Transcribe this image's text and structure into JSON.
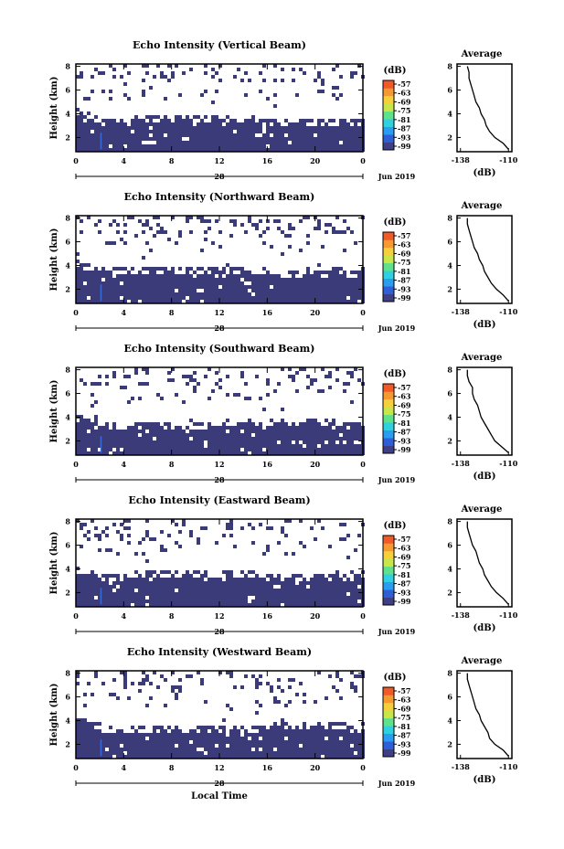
{
  "x_axis_label": "Local Time",
  "chart_data": [
    {
      "type": "heatmap",
      "title": "Echo Intensity (Vertical Beam)",
      "ylabel": "Height (km)",
      "x_ticks": [
        "0",
        "4",
        "8",
        "12",
        "16",
        "20",
        "0"
      ],
      "y_ticks": [
        "2",
        "4",
        "6",
        "8"
      ],
      "day_label": "28",
      "month_label": "Jun 2019",
      "colorbar_unit": "(dB)",
      "colorbar_ticks": [
        "-57",
        "-63",
        "-69",
        "-75",
        "-81",
        "-87",
        "-93",
        "-99"
      ],
      "ylim": [
        0.8,
        8.2
      ],
      "xlim": [
        0,
        24
      ],
      "echo_top_km": [
        4.3,
        3.8,
        3.4,
        3.4,
        3.6,
        3.8,
        3.8,
        3.6,
        3.6,
        3.6,
        3.7,
        3.6,
        3.5,
        3.6,
        3.4,
        3.3,
        3.2,
        3.5,
        3.3,
        3.5,
        3.3,
        3.6
      ],
      "avg_title": "Average",
      "avg_xlabel": "(dB)",
      "avg_x_ticks": [
        "-138",
        "-110"
      ],
      "avg_y_ticks": [
        "2",
        "4",
        "6",
        "8"
      ],
      "avg_xlim": [
        -140,
        -108
      ],
      "avg_height_km": [
        1.0,
        1.5,
        2.0,
        2.5,
        3.0,
        3.5,
        4.0,
        4.5,
        5.0,
        5.5,
        6.0,
        6.5,
        7.0,
        7.5,
        8.0
      ],
      "avg_db": [
        -110,
        -113,
        -118,
        -121,
        -123,
        -124,
        -126,
        -127,
        -129,
        -130,
        -131,
        -132,
        -133,
        -133,
        -134
      ]
    },
    {
      "type": "heatmap",
      "title": "Echo Intensity (Northward Beam)",
      "ylabel": "Height (km)",
      "x_ticks": [
        "0",
        "4",
        "8",
        "12",
        "16",
        "20",
        "0"
      ],
      "y_ticks": [
        "2",
        "4",
        "6",
        "8"
      ],
      "day_label": "28",
      "month_label": "Jun 2019",
      "colorbar_unit": "(dB)",
      "colorbar_ticks": [
        "-57",
        "-63",
        "-69",
        "-75",
        "-81",
        "-87",
        "-93",
        "-99"
      ],
      "ylim": [
        0.8,
        8.2
      ],
      "xlim": [
        0,
        24
      ],
      "echo_top_km": [
        4.3,
        3.9,
        3.6,
        3.6,
        3.8,
        3.8,
        3.8,
        3.7,
        3.7,
        3.7,
        3.7,
        3.6,
        3.7,
        3.8,
        3.6,
        3.5,
        3.4,
        3.6,
        3.4,
        3.7,
        3.4,
        3.7
      ],
      "avg_title": "Average",
      "avg_xlabel": "(dB)",
      "avg_x_ticks": [
        "-138",
        "-110"
      ],
      "avg_y_ticks": [
        "2",
        "4",
        "6",
        "8"
      ],
      "avg_xlim": [
        -140,
        -108
      ],
      "avg_height_km": [
        1.0,
        1.5,
        2.0,
        2.5,
        3.0,
        3.5,
        4.0,
        4.5,
        5.0,
        5.5,
        6.0,
        6.5,
        7.0,
        7.5,
        8.0
      ],
      "avg_db": [
        -110,
        -113,
        -117,
        -120,
        -122,
        -124,
        -125,
        -127,
        -128,
        -130,
        -131,
        -132,
        -133,
        -134,
        -134
      ]
    },
    {
      "type": "heatmap",
      "title": "Echo Intensity (Southward Beam)",
      "ylabel": "Height (km)",
      "x_ticks": [
        "0",
        "4",
        "8",
        "12",
        "16",
        "20",
        "0"
      ],
      "y_ticks": [
        "2",
        "4",
        "6",
        "8"
      ],
      "day_label": "28",
      "month_label": "Jun 2019",
      "colorbar_unit": "(dB)",
      "colorbar_ticks": [
        "-57",
        "-63",
        "-69",
        "-75",
        "-81",
        "-87",
        "-93",
        "-99"
      ],
      "ylim": [
        0.8,
        8.2
      ],
      "xlim": [
        0,
        24
      ],
      "echo_top_km": [
        4.6,
        4.1,
        3.5,
        3.2,
        3.3,
        3.6,
        3.5,
        3.3,
        3.2,
        3.3,
        3.5,
        3.6,
        3.7,
        3.5,
        3.8,
        3.9,
        3.7,
        4.0,
        3.6,
        3.8,
        3.4,
        3.7
      ],
      "avg_title": "Average",
      "avg_xlabel": "(dB)",
      "avg_x_ticks": [
        "-138",
        "-110"
      ],
      "avg_y_ticks": [
        "2",
        "4",
        "6",
        "8"
      ],
      "avg_xlim": [
        -140,
        -108
      ],
      "avg_height_km": [
        1.0,
        1.5,
        2.0,
        2.5,
        3.0,
        3.5,
        4.0,
        4.5,
        5.0,
        5.5,
        6.0,
        6.5,
        7.0,
        7.5,
        8.0
      ],
      "avg_db": [
        -110,
        -114,
        -118,
        -120,
        -122,
        -124,
        -126,
        -127,
        -128,
        -130,
        -131,
        -131,
        -133,
        -134,
        -134
      ]
    },
    {
      "type": "heatmap",
      "title": "Echo Intensity (Eastward Beam)",
      "ylabel": "Height (km)",
      "x_ticks": [
        "0",
        "4",
        "8",
        "12",
        "16",
        "20",
        "0"
      ],
      "y_ticks": [
        "2",
        "4",
        "6",
        "8"
      ],
      "day_label": "28",
      "month_label": "Jun 2019",
      "colorbar_unit": "(dB)",
      "colorbar_ticks": [
        "-57",
        "-63",
        "-69",
        "-75",
        "-81",
        "-87",
        "-93",
        "-99"
      ],
      "ylim": [
        0.8,
        8.2
      ],
      "xlim": [
        0,
        24
      ],
      "echo_top_km": [
        4.0,
        3.6,
        3.5,
        3.5,
        3.6,
        3.7,
        3.7,
        3.7,
        3.6,
        3.7,
        3.7,
        3.6,
        3.6,
        3.6,
        3.5,
        3.4,
        3.3,
        3.6,
        3.4,
        3.6,
        3.3,
        3.7
      ],
      "avg_title": "Average",
      "avg_xlabel": "(dB)",
      "avg_x_ticks": [
        "-138",
        "-110"
      ],
      "avg_y_ticks": [
        "2",
        "4",
        "6",
        "8"
      ],
      "avg_xlim": [
        -140,
        -108
      ],
      "avg_height_km": [
        1.0,
        1.5,
        2.0,
        2.5,
        3.0,
        3.5,
        4.0,
        4.5,
        5.0,
        5.5,
        6.0,
        6.5,
        7.0,
        7.5,
        8.0
      ],
      "avg_db": [
        -110,
        -113,
        -117,
        -120,
        -122,
        -124,
        -125,
        -127,
        -128,
        -129,
        -131,
        -132,
        -133,
        -134,
        -134
      ]
    },
    {
      "type": "heatmap",
      "title": "Echo Intensity (Westward Beam)",
      "ylabel": "Height (km)",
      "x_ticks": [
        "0",
        "4",
        "8",
        "12",
        "16",
        "20",
        "0"
      ],
      "y_ticks": [
        "2",
        "4",
        "6",
        "8"
      ],
      "day_label": "28",
      "month_label": "Jun 2019",
      "colorbar_unit": "(dB)",
      "colorbar_ticks": [
        "-57",
        "-63",
        "-69",
        "-75",
        "-81",
        "-87",
        "-93",
        "-99"
      ],
      "ylim": [
        0.8,
        8.2
      ],
      "xlim": [
        0,
        24
      ],
      "echo_top_km": [
        4.4,
        4.0,
        3.4,
        3.2,
        3.3,
        3.5,
        3.4,
        3.3,
        3.2,
        3.3,
        3.6,
        3.5,
        3.5,
        3.4,
        3.6,
        3.7,
        3.5,
        3.8,
        3.5,
        3.8,
        3.4,
        3.8
      ],
      "avg_title": "Average",
      "avg_xlabel": "(dB)",
      "avg_x_ticks": [
        "-138",
        "-110"
      ],
      "avg_y_ticks": [
        "2",
        "4",
        "6",
        "8"
      ],
      "avg_xlim": [
        -140,
        -108
      ],
      "avg_height_km": [
        1.0,
        1.5,
        2.0,
        2.5,
        3.0,
        3.5,
        4.0,
        4.5,
        5.0,
        5.5,
        6.0,
        6.5,
        7.0,
        7.5,
        8.0
      ],
      "avg_db": [
        -110,
        -113,
        -118,
        -121,
        -122,
        -124,
        -126,
        -127,
        -129,
        -130,
        -131,
        -132,
        -133,
        -134,
        -134
      ]
    }
  ],
  "colors": {
    "echo_fill": "#3b3b7a",
    "colorbar": [
      "#3f3f86",
      "#2f5fd6",
      "#2a9df0",
      "#2fd0e0",
      "#5fe08a",
      "#c8e64a",
      "#f5d03a",
      "#f59a30",
      "#f05a28"
    ]
  }
}
